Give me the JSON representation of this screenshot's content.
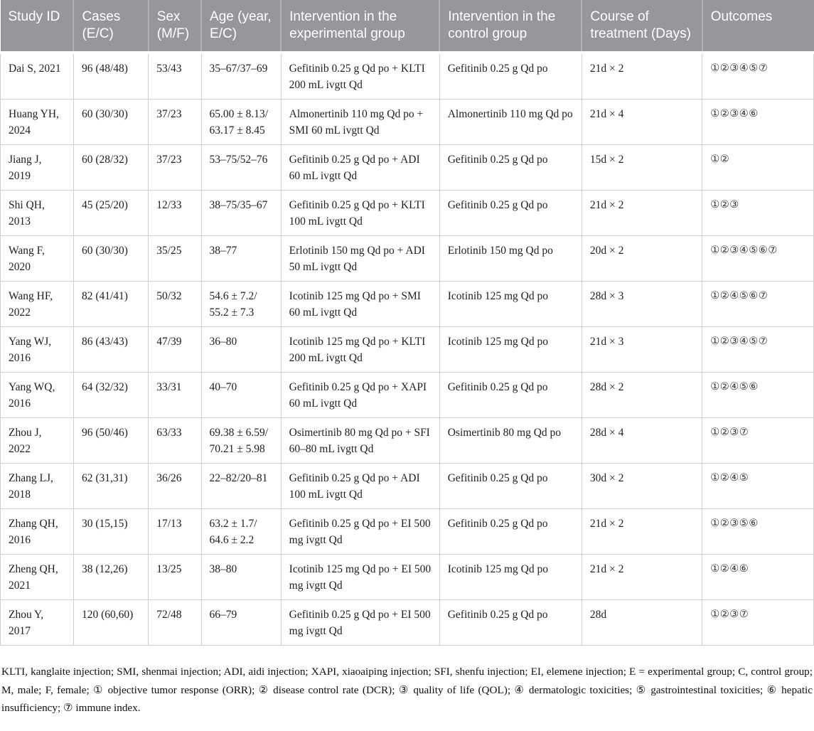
{
  "colors": {
    "header_bg": "#97969A",
    "header_text": "#FFFFFF",
    "body_border": "#CFCFCF"
  },
  "table": {
    "columns": [
      "Study ID",
      "Cases (E/C)",
      "Sex (M/F)",
      "Age (year, E/C)",
      "Intervention in the experimental group",
      "Intervention in the control group",
      "Course of treatment (Days)",
      "Outcomes"
    ],
    "row_keys": [
      "study_id",
      "cases",
      "sex",
      "age",
      "intervention_experimental",
      "intervention_control",
      "course",
      "outcomes"
    ],
    "rows": [
      {
        "study_id": "Dai S, 2021",
        "cases": "96 (48/48)",
        "sex": "53/43",
        "age": "35–67/37–69",
        "intervention_experimental": "Gefitinib 0.25 g Qd po + KLTI 200 mL ivgtt Qd",
        "intervention_control": "Gefitinib 0.25 g Qd po",
        "course": "21d × 2",
        "outcomes": "①②③④⑤⑦"
      },
      {
        "study_id": "Huang YH, 2024",
        "cases": "60 (30/30)",
        "sex": "37/23",
        "age": "65.00 ± 8.13/63.17 ± 8.45",
        "intervention_experimental": "Almonertinib 110 mg Qd po + SMI 60 mL ivgtt Qd",
        "intervention_control": "Almonertinib 110 mg Qd po",
        "course": "21d × 4",
        "outcomes": "①②③④⑥"
      },
      {
        "study_id": "Jiang J, 2019",
        "cases": "60 (28/32)",
        "sex": "37/23",
        "age": "53–75/52–76",
        "intervention_experimental": "Gefitinib 0.25 g Qd po + ADI 60 mL ivgtt Qd",
        "intervention_control": "Gefitinib 0.25 g Qd po",
        "course": "15d × 2",
        "outcomes": "①②"
      },
      {
        "study_id": "Shi QH, 2013",
        "cases": "45 (25/20)",
        "sex": "12/33",
        "age": "38–75/35–67",
        "intervention_experimental": "Gefitinib 0.25 g Qd po + KLTI 100 mL ivgtt Qd",
        "intervention_control": "Gefitinib 0.25 g Qd po",
        "course": "21d × 2",
        "outcomes": "①②③"
      },
      {
        "study_id": "Wang F, 2020",
        "cases": "60 (30/30)",
        "sex": "35/25",
        "age": "38–77",
        "intervention_experimental": "Erlotinib 150 mg Qd po + ADI 50 mL ivgtt Qd",
        "intervention_control": "Erlotinib 150 mg Qd po",
        "course": "20d × 2",
        "outcomes": "①②③④⑤⑥⑦"
      },
      {
        "study_id": "Wang HF, 2022",
        "cases": "82 (41/41)",
        "sex": "50/32",
        "age": "54.6 ± 7.2/55.2 ± 7.3",
        "intervention_experimental": "Icotinib 125 mg Qd po + SMI 60 mL ivgtt Qd",
        "intervention_control": "Icotinib 125 mg Qd po",
        "course": "28d × 3",
        "outcomes": "①②④⑤⑥⑦"
      },
      {
        "study_id": "Yang WJ, 2016",
        "cases": "86 (43/43)",
        "sex": "47/39",
        "age": "36–80",
        "intervention_experimental": "Icotinib 125 mg Qd po + KLTI 200 mL ivgtt Qd",
        "intervention_control": "Icotinib 125 mg Qd po",
        "course": "21d × 3",
        "outcomes": "①②③④⑤⑦"
      },
      {
        "study_id": "Yang WQ, 2016",
        "cases": "64 (32/32)",
        "sex": "33/31",
        "age": "40–70",
        "intervention_experimental": "Gefitinib 0.25 g Qd po + XAPI 60 mL ivgtt Qd",
        "intervention_control": "Gefitinib 0.25 g Qd po",
        "course": "28d × 2",
        "outcomes": "①②④⑤⑥"
      },
      {
        "study_id": "Zhou J, 2022",
        "cases": "96 (50/46)",
        "sex": "63/33",
        "age": "69.38 ± 6.59/70.21 ± 5.98",
        "intervention_experimental": "Osimertinib 80 mg Qd po + SFI 60–80 mL ivgtt Qd",
        "intervention_control": "Osimertinib 80 mg Qd po",
        "course": "28d × 4",
        "outcomes": "①②③⑦"
      },
      {
        "study_id": "Zhang LJ, 2018",
        "cases": "62 (31,31)",
        "sex": "36/26",
        "age": "22–82/20–81",
        "intervention_experimental": "Gefitinib 0.25 g Qd po + ADI 100 mL ivgtt Qd",
        "intervention_control": "Gefitinib 0.25 g Qd po",
        "course": "30d × 2",
        "outcomes": "①②④⑤"
      },
      {
        "study_id": "Zhang QH, 2016",
        "cases": "30 (15,15)",
        "sex": "17/13",
        "age": "63.2 ± 1.7/64.6 ± 2.2",
        "intervention_experimental": "Gefitinib 0.25 g Qd po + EI 500 mg ivgtt Qd",
        "intervention_control": "Gefitinib 0.25 g Qd po",
        "course": "21d × 2",
        "outcomes": "①②③⑤⑥"
      },
      {
        "study_id": "Zheng QH, 2021",
        "cases": "38 (12,26)",
        "sex": "13/25",
        "age": "38–80",
        "intervention_experimental": "Icotinib 125 mg Qd po + EI 500 mg ivgtt Qd",
        "intervention_control": "Icotinib 125 mg Qd po",
        "course": "21d × 2",
        "outcomes": "①②④⑥"
      },
      {
        "study_id": "Zhou Y, 2017",
        "cases": "120 (60,60)",
        "sex": "72/48",
        "age": "66–79",
        "intervention_experimental": "Gefitinib 0.25 g Qd po + EI 500 mg ivgtt Qd",
        "intervention_control": "Gefitinib 0.25 g Qd po",
        "course": "28d",
        "outcomes": "①②③⑦"
      }
    ]
  },
  "footnote": "KLTI, kanglaite injection; SMI, shenmai injection; ADI, aidi injection; XAPI, xiaoaiping injection; SFI, shenfu injection; EI, elemene injection; E = experimental group; C, control group; M, male; F, female; ① objective tumor response (ORR); ② disease control rate (DCR); ③ quality of life (QOL); ④ dermatologic toxicities; ⑤ gastrointestinal toxicities; ⑥ hepatic insufficiency; ⑦ immune index."
}
